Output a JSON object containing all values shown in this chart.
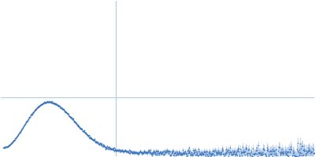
{
  "background_color": "#ffffff",
  "data_color": "#3570b8",
  "error_color": "#a8c4e8",
  "figsize": [
    4.0,
    2.0
  ],
  "dpi": 100,
  "q_min": 0.005,
  "q_max": 0.6,
  "peak_q": 0.095,
  "peak_val": 0.72,
  "grid_color": "#a8c8e8",
  "hline_y": 0.8,
  "vline_x": 0.22,
  "ylim_min": -0.05,
  "ylim_max": 2.2,
  "n_points": 800,
  "seed": 42
}
